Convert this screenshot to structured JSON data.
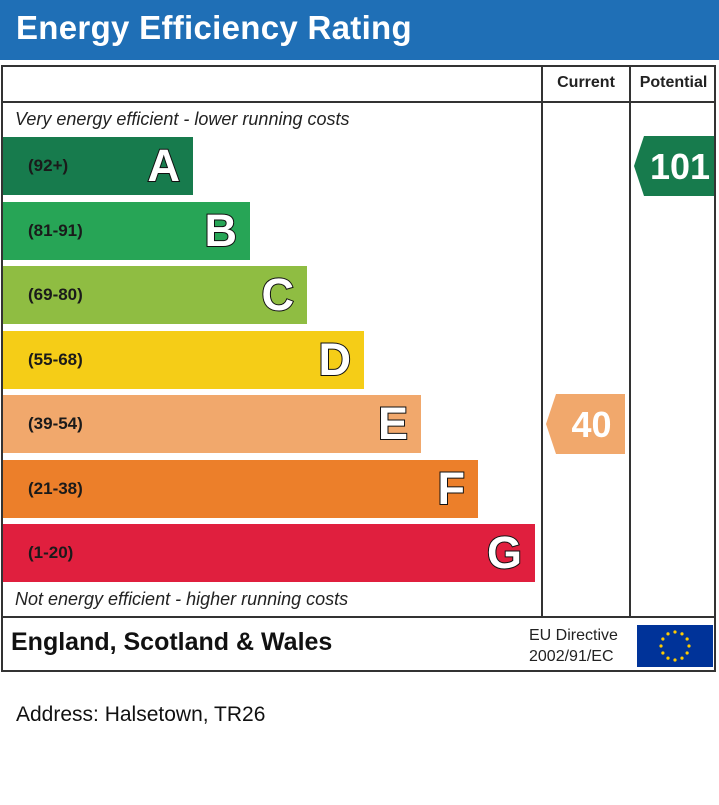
{
  "header": {
    "title": "Energy Efficiency Rating"
  },
  "columns": {
    "current": "Current",
    "potential": "Potential"
  },
  "notes": {
    "top": "Very energy efficient - lower running costs",
    "bottom": "Not energy efficient - higher running costs"
  },
  "chart_data": {
    "type": "bar",
    "bands": [
      {
        "letter": "A",
        "range": "(92+)",
        "color": "#177b4d"
      },
      {
        "letter": "B",
        "range": "(81-91)",
        "color": "#27a556"
      },
      {
        "letter": "C",
        "range": "(69-80)",
        "color": "#8fbd42"
      },
      {
        "letter": "D",
        "range": "(55-68)",
        "color": "#f5cd17"
      },
      {
        "letter": "E",
        "range": "(39-54)",
        "color": "#f1a86c"
      },
      {
        "letter": "F",
        "range": "(21-38)",
        "color": "#ec7f2a"
      },
      {
        "letter": "G",
        "range": "(1-20)",
        "color": "#e01f3e"
      }
    ],
    "current": {
      "value": "40",
      "band": "E",
      "color": "#f1a86c"
    },
    "potential": {
      "value": "101",
      "band": "A",
      "color": "#177b4d"
    }
  },
  "footer": {
    "region": "England, Scotland & Wales",
    "directive_line1": "EU Directive",
    "directive_line2": "2002/91/EC"
  },
  "address": "Address: Halsetown, TR26"
}
